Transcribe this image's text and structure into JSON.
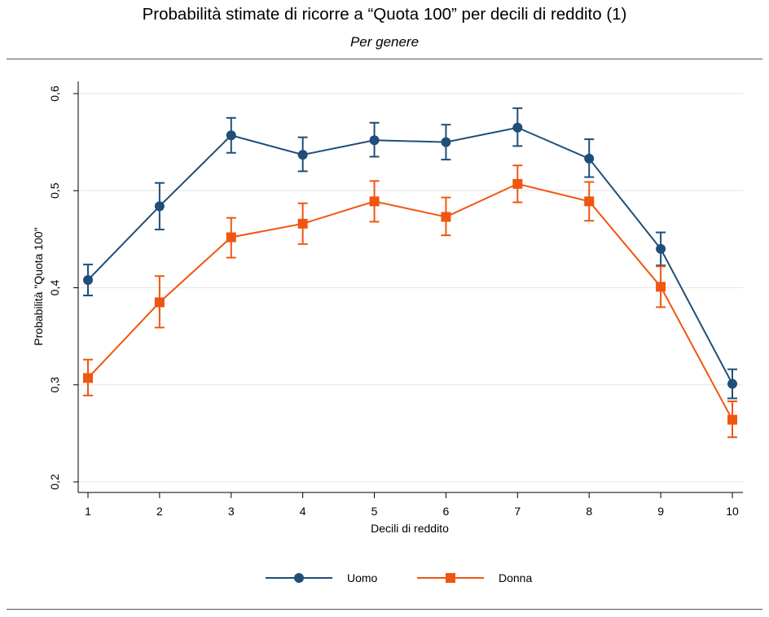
{
  "header": {
    "title": "Probabilità stimate di ricorre a “Quota 100” per decili di reddito (1)",
    "subtitle": "Per genere"
  },
  "chart_data": {
    "type": "line",
    "xlabel": "Decili di reddito",
    "ylabel": "Probabilità \"Quota 100\"",
    "x": [
      1,
      2,
      3,
      4,
      5,
      6,
      7,
      8,
      9,
      10
    ],
    "x_tick_labels": [
      "1",
      "2",
      "3",
      "4",
      "5",
      "6",
      "7",
      "8",
      "9",
      "10"
    ],
    "y_ticks": [
      0.2,
      0.3,
      0.4,
      0.5,
      0.6
    ],
    "y_tick_labels": [
      "0,2",
      "0,3",
      "0,4",
      "0,5",
      "0,6"
    ],
    "ylim": [
      0.2,
      0.6
    ],
    "xlim": [
      1,
      10
    ],
    "grid": "horizontal",
    "legend_position": "bottom",
    "error_bars": true,
    "series": [
      {
        "name": "Uomo",
        "color": "#1f4e79",
        "marker": "circle",
        "values": [
          0.408,
          0.484,
          0.557,
          0.537,
          0.552,
          0.55,
          0.565,
          0.533,
          0.44,
          0.301
        ],
        "lower": [
          0.392,
          0.46,
          0.539,
          0.52,
          0.535,
          0.532,
          0.546,
          0.514,
          0.423,
          0.286
        ],
        "upper": [
          0.424,
          0.508,
          0.575,
          0.555,
          0.57,
          0.568,
          0.585,
          0.553,
          0.457,
          0.316
        ]
      },
      {
        "name": "Donna",
        "color": "#f0560f",
        "marker": "square",
        "values": [
          0.307,
          0.385,
          0.452,
          0.466,
          0.489,
          0.473,
          0.507,
          0.489,
          0.401,
          0.264
        ],
        "lower": [
          0.289,
          0.359,
          0.431,
          0.445,
          0.468,
          0.454,
          0.488,
          0.469,
          0.38,
          0.246
        ],
        "upper": [
          0.326,
          0.412,
          0.472,
          0.487,
          0.51,
          0.493,
          0.526,
          0.509,
          0.422,
          0.283
        ]
      }
    ]
  }
}
